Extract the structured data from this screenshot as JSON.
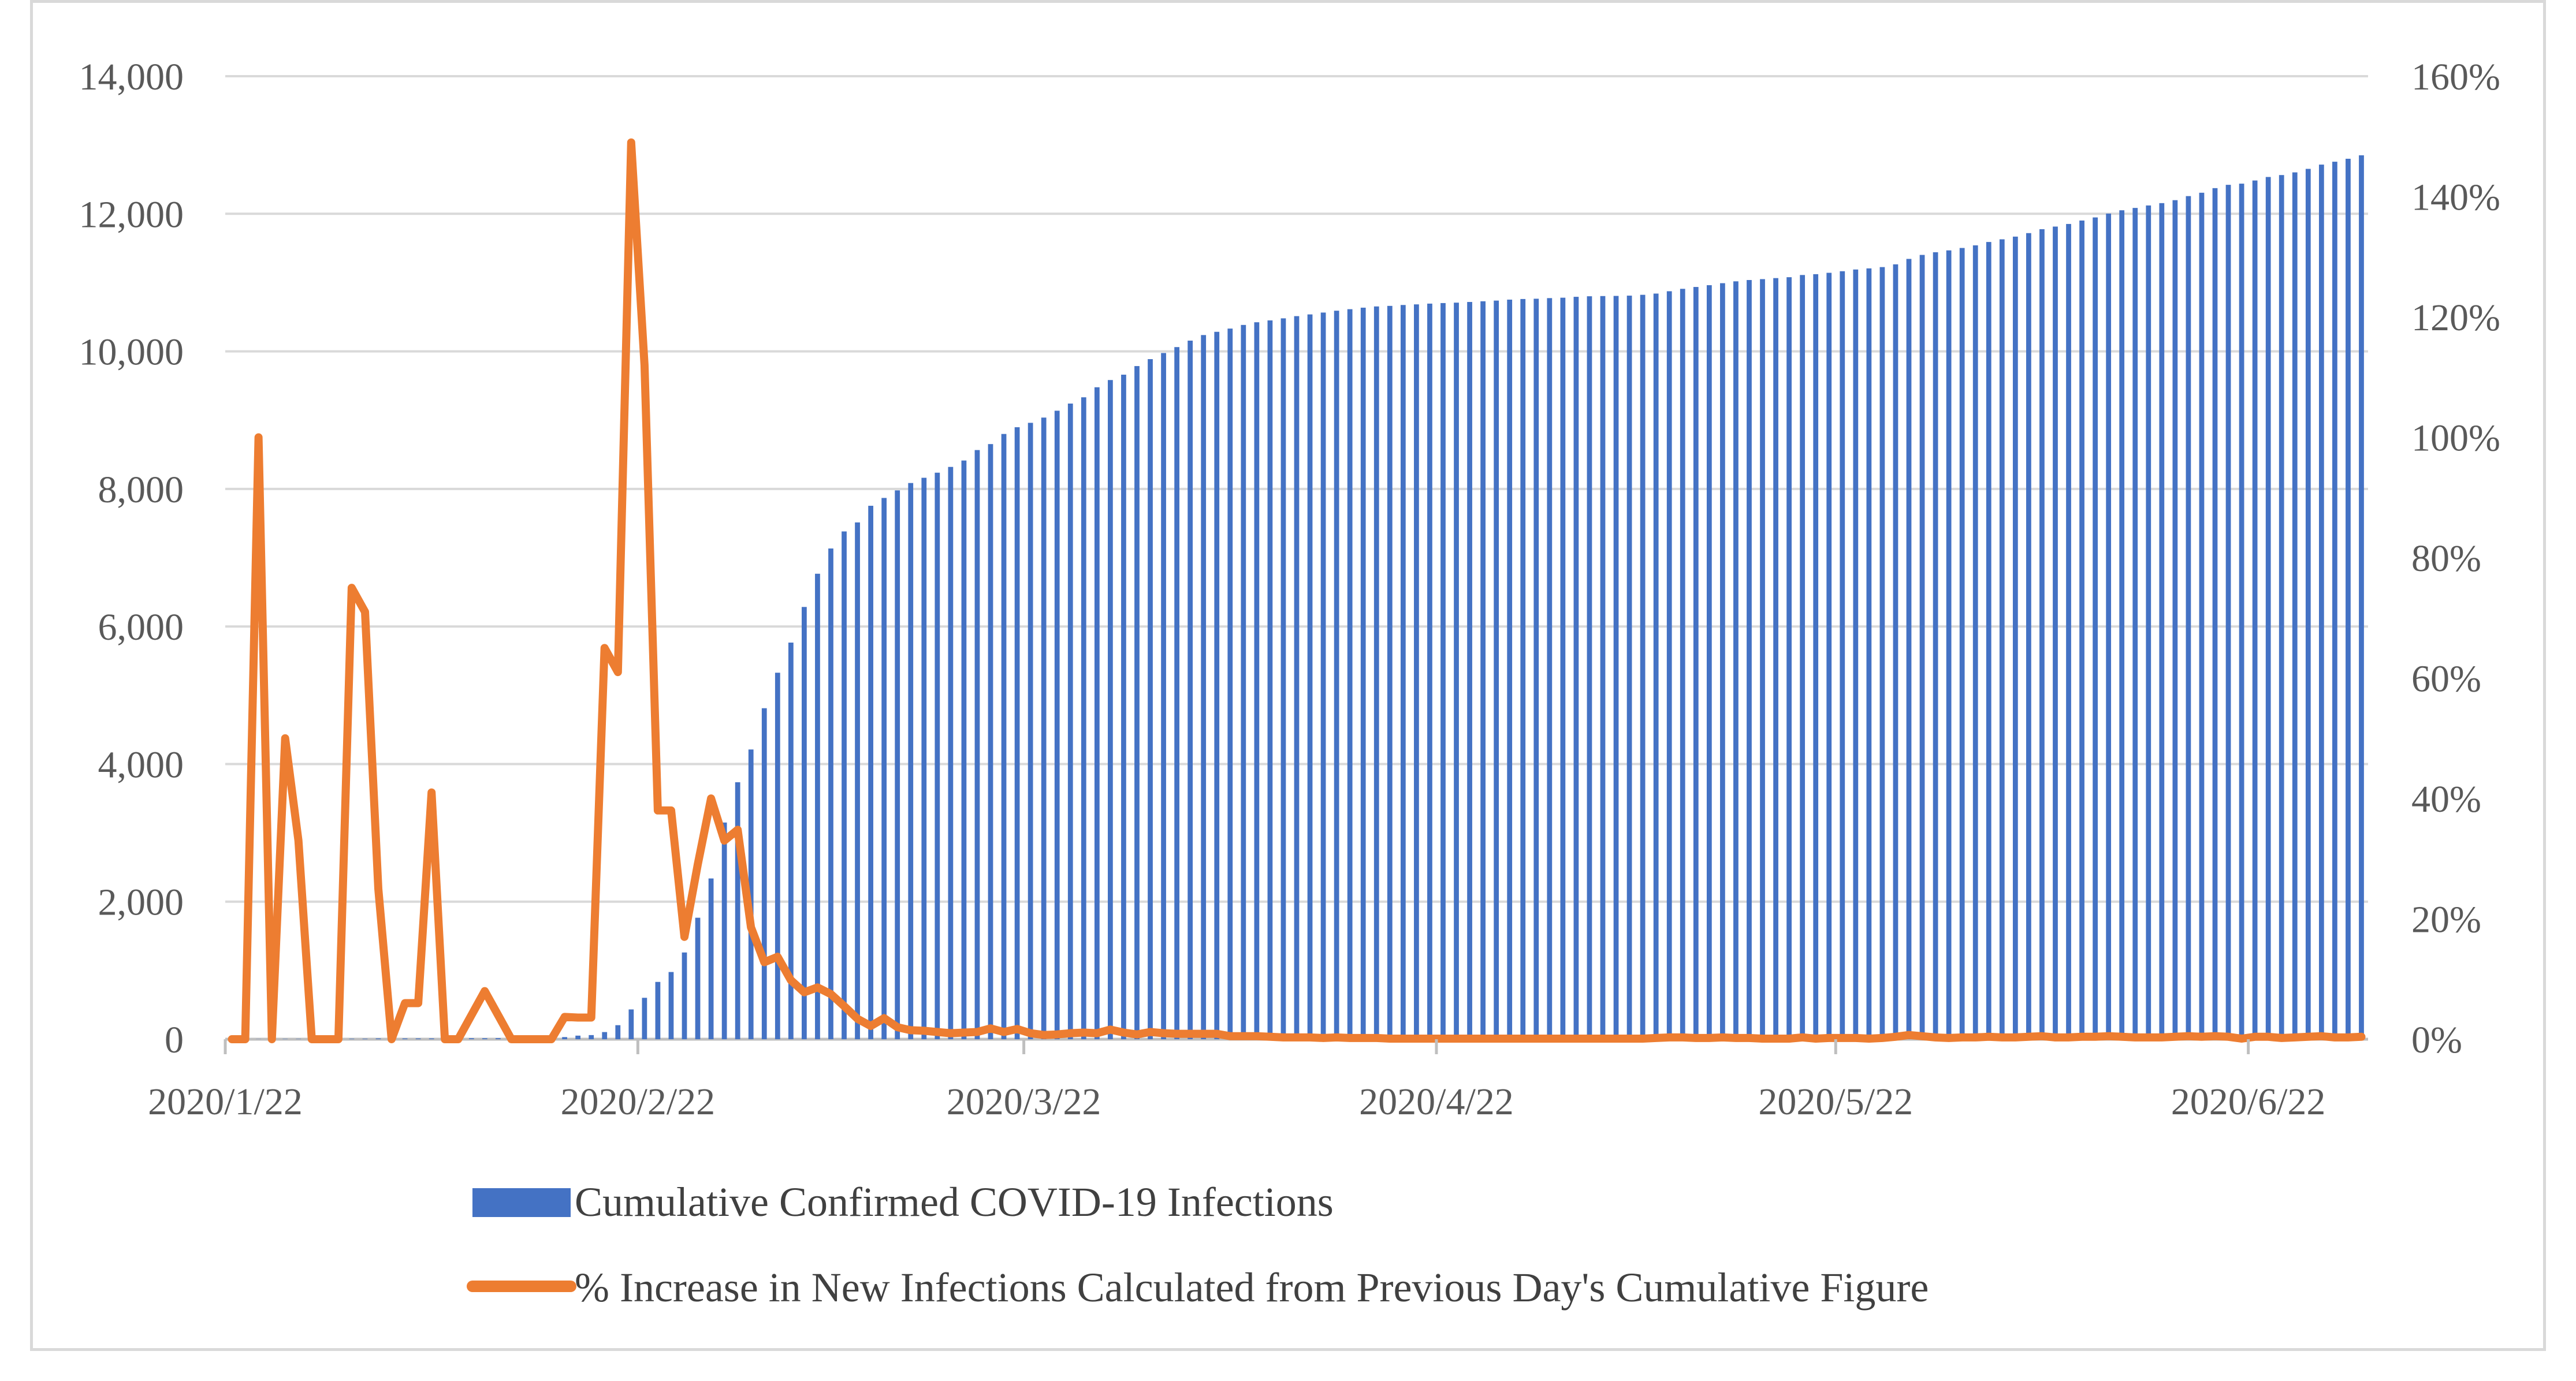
{
  "chart_data": {
    "type": "bar+line",
    "title": "",
    "xlabel": "",
    "ylabel_left": "",
    "ylabel_right": "",
    "x_start_date": "2020-01-22",
    "x_end_date": "2020-06-30",
    "x_tick_labels": [
      "2020/1/22",
      "2020/2/22",
      "2020/3/22",
      "2020/4/22",
      "2020/5/22",
      "2020/6/22"
    ],
    "x_tick_day_index": [
      0,
      31,
      60,
      91,
      121,
      152
    ],
    "y_left": {
      "range": [
        0,
        14000
      ],
      "ticks": [
        0,
        2000,
        4000,
        6000,
        8000,
        10000,
        12000,
        14000
      ],
      "tick_labels": [
        "0",
        "2,000",
        "4,000",
        "6,000",
        "8,000",
        "10,000",
        "12,000",
        "14,000"
      ]
    },
    "y_right": {
      "range": [
        0,
        160
      ],
      "ticks": [
        0,
        20,
        40,
        60,
        80,
        100,
        120,
        140,
        160
      ],
      "tick_labels": [
        "0%",
        "20%",
        "40%",
        "60%",
        "80%",
        "100%",
        "120%",
        "140%",
        "160%"
      ]
    },
    "grid": true,
    "legend_position": "bottom",
    "series": [
      {
        "name": "Cumulative Confirmed COVID-19 Infections",
        "type": "bar",
        "axis": "left",
        "color": "#4472c4",
        "values": [
          1,
          2,
          2,
          3,
          4,
          4,
          4,
          4,
          5,
          6,
          7,
          11,
          11,
          11,
          11,
          11,
          12,
          13,
          14,
          14,
          15,
          16,
          18,
          21,
          26,
          31,
          52,
          60,
          104,
          204,
          433,
          602,
          833,
          977,
          1261,
          1766,
          2337,
          3150,
          3736,
          4212,
          4812,
          5328,
          5766,
          6284,
          6767,
          7134,
          7382,
          7513,
          7755,
          7869,
          7979,
          8086,
          8162,
          8236,
          8320,
          8413,
          8565,
          8652,
          8799,
          8897,
          8961,
          9037,
          9137,
          9241,
          9332,
          9478,
          9583,
          9661,
          9786,
          9887,
          9976,
          10062,
          10156,
          10237,
          10284,
          10331,
          10384,
          10423,
          10450,
          10480,
          10512,
          10537,
          10564,
          10591,
          10613,
          10635,
          10653,
          10661,
          10674,
          10683,
          10694,
          10702,
          10708,
          10718,
          10728,
          10738,
          10752,
          10761,
          10765,
          10774,
          10780,
          10793,
          10801,
          10804,
          10806,
          10810,
          10822,
          10840,
          10874,
          10909,
          10936,
          10962,
          10991,
          11018,
          11037,
          11050,
          11065,
          11078,
          11110,
          11122,
          11142,
          11165,
          11190,
          11206,
          11225,
          11265,
          11344,
          11402,
          11441,
          11468,
          11503,
          11541,
          11590,
          11629,
          11668,
          11719,
          11776,
          11814,
          11852,
          11902,
          11947,
          12003,
          12051,
          12085,
          12121,
          12155,
          12198,
          12257,
          12306,
          12373,
          12421,
          12438,
          12484,
          12535,
          12563,
          12602,
          12653,
          12715,
          12757,
          12800,
          12850
        ]
      },
      {
        "name": "% Increase in New Infections Calculated from Previous Day's Cumulative Figure",
        "type": "line",
        "axis": "right",
        "color": "#ed7d31",
        "values": [
          0,
          0,
          100,
          0,
          50,
          33,
          0,
          0,
          0,
          75,
          71,
          25,
          0,
          6,
          6,
          41,
          0,
          0,
          4,
          8,
          4,
          0,
          0,
          0,
          0,
          3.7,
          3.6,
          3.6,
          65,
          61,
          149,
          112,
          38,
          38,
          17,
          29,
          40,
          33,
          34.8,
          18.6,
          12.8,
          13.7,
          9.8,
          7.8,
          8.6,
          7.5,
          5.5,
          3.4,
          2.2,
          3.5,
          2.0,
          1.5,
          1.4,
          1.2,
          1.0,
          1.1,
          1.2,
          1.8,
          1.2,
          1.7,
          1.0,
          0.7,
          0.8,
          1.0,
          1.1,
          1.0,
          1.6,
          1.1,
          0.8,
          1.2,
          1.0,
          0.9,
          0.9,
          0.9,
          0.9,
          0.5,
          0.5,
          0.5,
          0.4,
          0.3,
          0.3,
          0.3,
          0.2,
          0.3,
          0.2,
          0.2,
          0.2,
          0.1,
          0.1,
          0.1,
          0.1,
          0.1,
          0.1,
          0.1,
          0.1,
          0.1,
          0.1,
          0.1,
          0.1,
          0.1,
          0.1,
          0.1,
          0.1,
          0.1,
          0.1,
          0.1,
          0.1,
          0.2,
          0.3,
          0.3,
          0.2,
          0.2,
          0.3,
          0.2,
          0.2,
          0.1,
          0.1,
          0.1,
          0.3,
          0.1,
          0.2,
          0.2,
          0.2,
          0.1,
          0.2,
          0.4,
          0.7,
          0.5,
          0.3,
          0.2,
          0.3,
          0.3,
          0.4,
          0.3,
          0.3,
          0.4,
          0.5,
          0.3,
          0.3,
          0.4,
          0.4,
          0.5,
          0.4,
          0.3,
          0.3,
          0.3,
          0.4,
          0.5,
          0.4,
          0.5,
          0.4,
          0.1,
          0.4,
          0.4,
          0.2,
          0.3,
          0.4,
          0.5,
          0.3,
          0.3,
          0.4
        ]
      }
    ]
  }
}
